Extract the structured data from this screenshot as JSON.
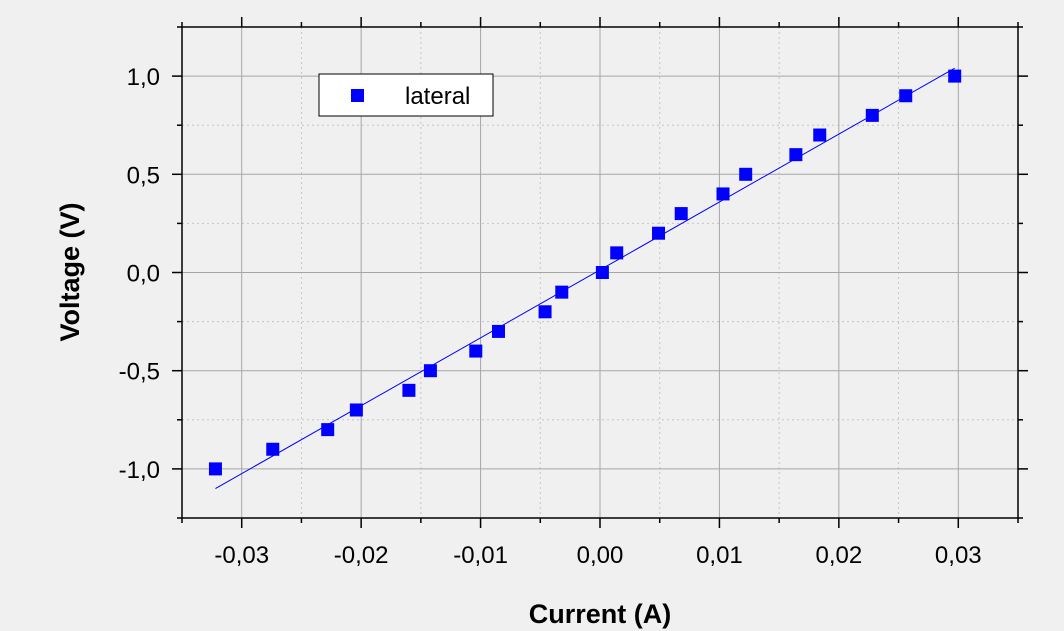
{
  "chart_data": {
    "type": "scatter",
    "xlabel": "Current (A)",
    "ylabel": "Voltage (V)",
    "xlim": [
      -0.035,
      0.035
    ],
    "ylim": [
      -1.25,
      1.25
    ],
    "x_ticks": [
      -0.03,
      -0.02,
      -0.01,
      0.0,
      0.01,
      0.02,
      0.03
    ],
    "x_tick_labels": [
      "-0,03",
      "-0,02",
      "-0,01",
      "0,00",
      "0,01",
      "0,02",
      "0,03"
    ],
    "y_ticks": [
      -1.0,
      -0.5,
      0.0,
      0.5,
      1.0
    ],
    "y_tick_labels": [
      "-1,0",
      "-0,5",
      "0,0",
      "0,5",
      "1,0"
    ],
    "grid": true,
    "legend_position": "top-left",
    "series": [
      {
        "name": "lateral",
        "color": "#0000ff",
        "marker": "square",
        "x": [
          -0.0322,
          -0.0274,
          -0.0228,
          -0.0204,
          -0.016,
          -0.0142,
          -0.0104,
          -0.0085,
          -0.0046,
          -0.0032,
          0.0002,
          0.0014,
          0.0049,
          0.0068,
          0.0103,
          0.0122,
          0.0164,
          0.0184,
          0.0228,
          0.0256,
          0.0297
        ],
        "y": [
          -1.0,
          -0.9,
          -0.8,
          -0.7,
          -0.6,
          -0.5,
          -0.4,
          -0.3,
          -0.2,
          -0.1,
          0.0,
          0.1,
          0.2,
          0.3,
          0.4,
          0.5,
          0.6,
          0.7,
          0.8,
          0.9,
          1.0
        ]
      }
    ],
    "fit_line": {
      "color": "#0000ff",
      "x": [
        -0.0322,
        0.0297
      ],
      "y": [
        -1.1,
        1.04
      ]
    }
  }
}
